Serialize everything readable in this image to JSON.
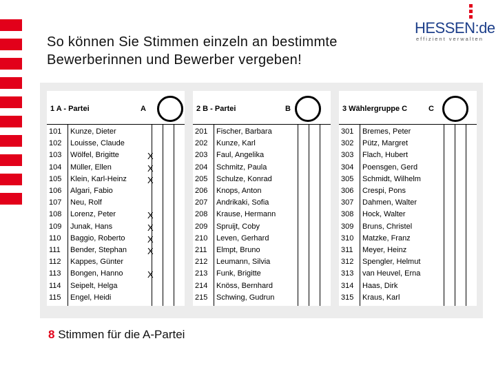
{
  "title": {
    "line1": "So können Sie Stimmen einzeln an bestimmte",
    "line2": "Bewerberinnen und Bewerber vergeben!"
  },
  "logo": {
    "word": "HESSEN",
    "sep": ":",
    "tld": "de",
    "slogan": "effizient verwalten"
  },
  "colors": {
    "accent": "#e2001a",
    "logo_blue": "#1d3f8a"
  },
  "ballot": {
    "columns": [
      {
        "party": "1 A - Partei",
        "letter": "A",
        "candidates": [
          {
            "num": "101",
            "name": "Kunze, Dieter",
            "mark": ""
          },
          {
            "num": "102",
            "name": "Louisse, Claude",
            "mark": ""
          },
          {
            "num": "103",
            "name": "Wölfel, Brigitte",
            "mark": "X"
          },
          {
            "num": "104",
            "name": "Müller, Ellen",
            "mark": "X"
          },
          {
            "num": "105",
            "name": "Klein, Karl-Heinz",
            "mark": "X"
          },
          {
            "num": "106",
            "name": "Algari, Fabio",
            "mark": ""
          },
          {
            "num": "107",
            "name": "Neu, Rolf",
            "mark": ""
          },
          {
            "num": "108",
            "name": "Lorenz, Peter",
            "mark": "X"
          },
          {
            "num": "109",
            "name": "Junak, Hans",
            "mark": "X"
          },
          {
            "num": "110",
            "name": "Baggio, Roberto",
            "mark": "X"
          },
          {
            "num": "111",
            "name": "Bender, Stephan",
            "mark": "X"
          },
          {
            "num": "112",
            "name": "Kappes, Günter",
            "mark": ""
          },
          {
            "num": "113",
            "name": "Bongen, Hanno",
            "mark": "X"
          },
          {
            "num": "114",
            "name": "Seipelt, Helga",
            "mark": ""
          },
          {
            "num": "115",
            "name": "Engel, Heidi",
            "mark": ""
          }
        ]
      },
      {
        "party": "2 B - Partei",
        "letter": "B",
        "candidates": [
          {
            "num": "201",
            "name": "Fischer, Barbara",
            "mark": ""
          },
          {
            "num": "202",
            "name": "Kunze, Karl",
            "mark": ""
          },
          {
            "num": "203",
            "name": "Faul, Angelika",
            "mark": ""
          },
          {
            "num": "204",
            "name": "Schmitz, Paula",
            "mark": ""
          },
          {
            "num": "205",
            "name": "Schulze, Konrad",
            "mark": ""
          },
          {
            "num": "206",
            "name": "Knops, Anton",
            "mark": ""
          },
          {
            "num": "207",
            "name": "Andrikaki, Sofia",
            "mark": ""
          },
          {
            "num": "208",
            "name": "Krause, Hermann",
            "mark": ""
          },
          {
            "num": "209",
            "name": "Spruijt, Coby",
            "mark": ""
          },
          {
            "num": "210",
            "name": "Leven, Gerhard",
            "mark": ""
          },
          {
            "num": "211",
            "name": "Elmpt, Bruno",
            "mark": ""
          },
          {
            "num": "212",
            "name": "Leumann, Silvia",
            "mark": ""
          },
          {
            "num": "213",
            "name": "Funk, Brigitte",
            "mark": ""
          },
          {
            "num": "214",
            "name": "Knöss, Bernhard",
            "mark": ""
          },
          {
            "num": "215",
            "name": "Schwing, Gudrun",
            "mark": ""
          }
        ]
      },
      {
        "party": "3 Wählergruppe C",
        "letter": "C",
        "candidates": [
          {
            "num": "301",
            "name": "Bremes, Peter",
            "mark": ""
          },
          {
            "num": "302",
            "name": "Pütz, Margret",
            "mark": ""
          },
          {
            "num": "303",
            "name": "Flach, Hubert",
            "mark": ""
          },
          {
            "num": "304",
            "name": "Poensgen, Gerd",
            "mark": ""
          },
          {
            "num": "305",
            "name": "Schmidt, Wilhelm",
            "mark": ""
          },
          {
            "num": "306",
            "name": "Crespi, Pons",
            "mark": ""
          },
          {
            "num": "307",
            "name": "Dahmen, Walter",
            "mark": ""
          },
          {
            "num": "308",
            "name": "Hock, Walter",
            "mark": ""
          },
          {
            "num": "309",
            "name": "Bruns, Christel",
            "mark": ""
          },
          {
            "num": "310",
            "name": "Matzke, Franz",
            "mark": ""
          },
          {
            "num": "311",
            "name": "Meyer, Heinz",
            "mark": ""
          },
          {
            "num": "312",
            "name": "Spengler, Helmut",
            "mark": ""
          },
          {
            "num": "313",
            "name": "van Heuvel, Erna",
            "mark": ""
          },
          {
            "num": "314",
            "name": "Haas, Dirk",
            "mark": ""
          },
          {
            "num": "315",
            "name": "Kraus, Karl",
            "mark": ""
          }
        ]
      }
    ]
  },
  "footer": {
    "count": "8",
    "text": "Stimmen für die A-Partei"
  }
}
